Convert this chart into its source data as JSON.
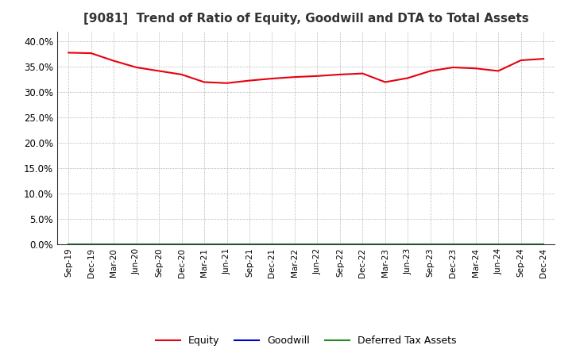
{
  "title": "[9081]  Trend of Ratio of Equity, Goodwill and DTA to Total Assets",
  "x_labels": [
    "Sep-19",
    "Dec-19",
    "Mar-20",
    "Jun-20",
    "Sep-20",
    "Dec-20",
    "Mar-21",
    "Jun-21",
    "Sep-21",
    "Dec-21",
    "Mar-22",
    "Jun-22",
    "Sep-22",
    "Dec-22",
    "Mar-23",
    "Jun-23",
    "Sep-23",
    "Dec-23",
    "Mar-24",
    "Jun-24",
    "Sep-24",
    "Dec-24"
  ],
  "equity": [
    0.378,
    0.377,
    0.362,
    0.349,
    0.342,
    0.335,
    0.32,
    0.318,
    0.323,
    0.327,
    0.33,
    0.332,
    0.335,
    0.337,
    0.32,
    0.328,
    0.342,
    0.349,
    0.347,
    0.342,
    0.363,
    0.366
  ],
  "goodwill": [
    0.0,
    0.0,
    0.0,
    0.0,
    0.0,
    0.0,
    0.0,
    0.0,
    0.0,
    0.0,
    0.0,
    0.0,
    0.0,
    0.0,
    0.0,
    0.0,
    0.0,
    0.0,
    0.0,
    0.0,
    0.0,
    0.0
  ],
  "dta": [
    0.0,
    0.0,
    0.0,
    0.0,
    0.0,
    0.0,
    0.0,
    0.0,
    0.0,
    0.0,
    0.0,
    0.0,
    0.0,
    0.0,
    0.0,
    0.0,
    0.0,
    0.0,
    0.0,
    0.0,
    0.0,
    0.0
  ],
  "equity_color": "#e8000d",
  "goodwill_color": "#0000cd",
  "dta_color": "#228B22",
  "ylim": [
    0.0,
    0.42
  ],
  "yticks": [
    0.0,
    0.05,
    0.1,
    0.15,
    0.2,
    0.25,
    0.3,
    0.35,
    0.4
  ],
  "background_color": "#ffffff",
  "grid_color": "#aaaaaa",
  "title_fontsize": 11,
  "legend_labels": [
    "Equity",
    "Goodwill",
    "Deferred Tax Assets"
  ]
}
